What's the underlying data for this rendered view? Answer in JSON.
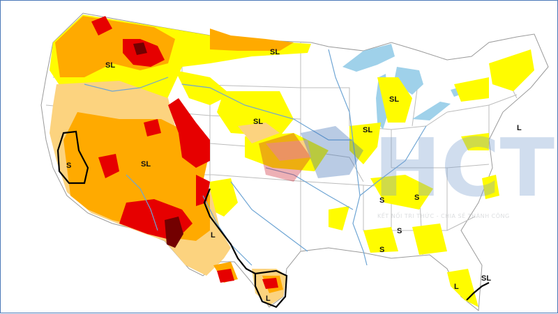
{
  "map": {
    "colors": {
      "water": "#9fd1ea",
      "d0": "#fffc00",
      "d1": "#fcd37f",
      "d2": "#ffaa00",
      "d3": "#e60000",
      "d4": "#730000",
      "states": "#b9b9b9",
      "rivers": "#6ea5d4",
      "boundary": "#000000"
    },
    "impact_labels": [
      {
        "id": "sl-north-rockies",
        "text": "SL"
      },
      {
        "id": "sl-north-dakota",
        "text": "SL"
      },
      {
        "id": "sl-michigan",
        "text": "SL"
      },
      {
        "id": "sl-nebraska",
        "text": "SL"
      },
      {
        "id": "sl-illinois",
        "text": "SL"
      },
      {
        "id": "sl-great-basin",
        "text": "SL"
      },
      {
        "id": "s-california",
        "text": "S"
      },
      {
        "id": "l-new-mexico",
        "text": "L"
      },
      {
        "id": "l-south-texas",
        "text": "L"
      },
      {
        "id": "s-mississippi",
        "text": "S"
      },
      {
        "id": "s-tennessee",
        "text": "S"
      },
      {
        "id": "s-alabama-north",
        "text": "S"
      },
      {
        "id": "s-alabama-south",
        "text": "S"
      },
      {
        "id": "l-virginia",
        "text": "L"
      },
      {
        "id": "l-florida",
        "text": "L"
      },
      {
        "id": "sl-florida",
        "text": "SL"
      }
    ],
    "watermark": {
      "logo": "HCT",
      "tagline": "KẾT NỐI TRI THỨC - CHIA SẺ THÀNH CÔNG"
    }
  }
}
